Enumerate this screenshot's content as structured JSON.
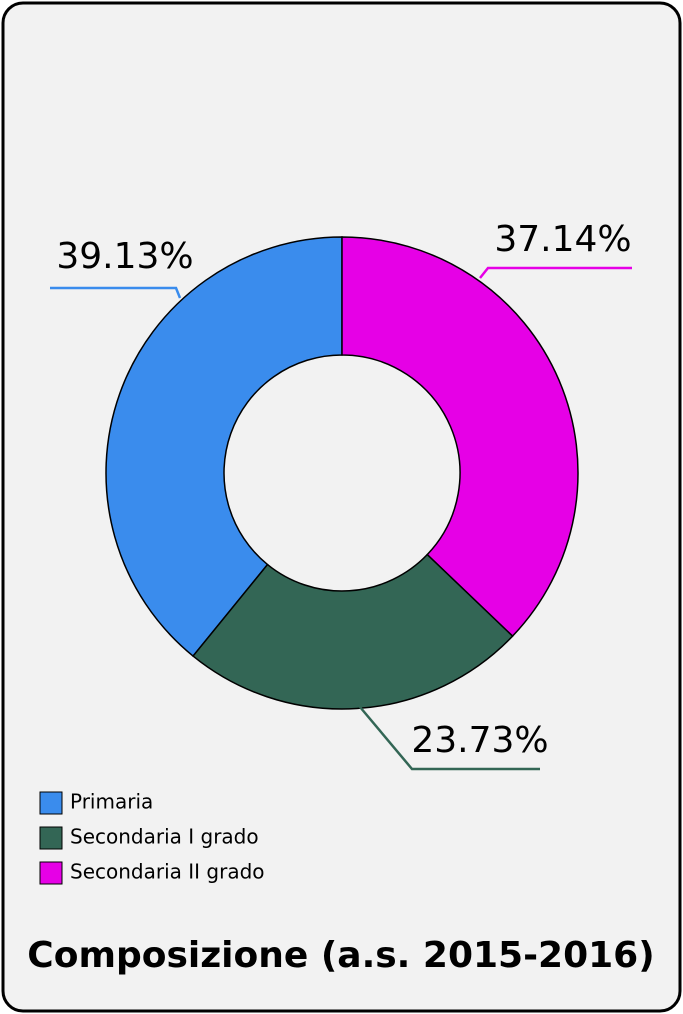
{
  "chart_data": {
    "type": "donut",
    "title": "Composizione (a.s. 2015-2016)",
    "categories": [
      "Primaria",
      "Secondaria I grado",
      "Secondaria II grado"
    ],
    "values": [
      39.13,
      23.73,
      37.14
    ],
    "value_labels": [
      "39.13%",
      "23.73%",
      "37.14%"
    ],
    "colors": [
      "#3a8ced",
      "#336655",
      "#e600e6"
    ]
  }
}
